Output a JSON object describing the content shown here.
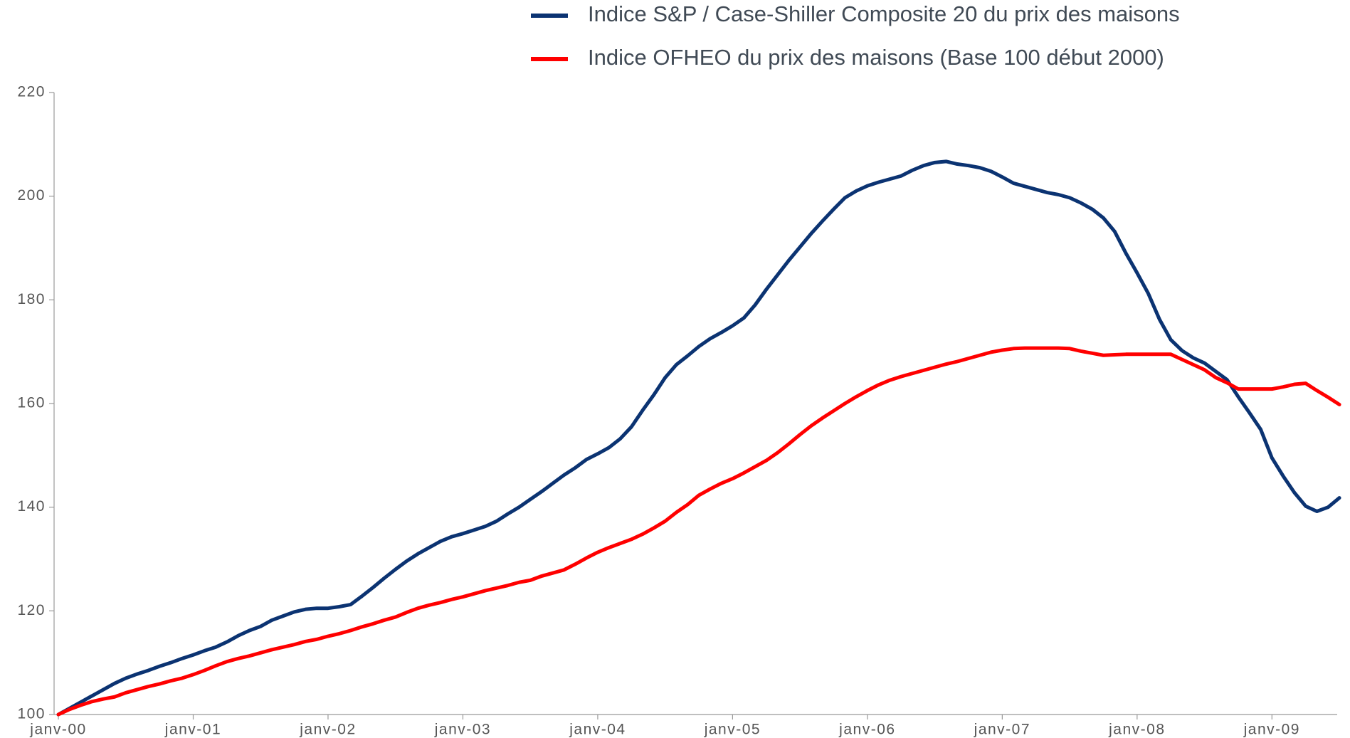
{
  "chart_data": {
    "type": "line",
    "categories": [
      "janv-00",
      null,
      null,
      null,
      null,
      null,
      null,
      null,
      null,
      null,
      null,
      null,
      "janv-01",
      null,
      null,
      null,
      null,
      null,
      null,
      null,
      null,
      null,
      null,
      null,
      "janv-02",
      null,
      null,
      null,
      null,
      null,
      null,
      null,
      null,
      null,
      null,
      null,
      "janv-03",
      null,
      null,
      null,
      null,
      null,
      null,
      null,
      null,
      null,
      null,
      null,
      "janv-04",
      null,
      null,
      null,
      null,
      null,
      null,
      null,
      null,
      null,
      null,
      null,
      "janv-05",
      null,
      null,
      null,
      null,
      null,
      null,
      null,
      null,
      null,
      null,
      null,
      "janv-06",
      null,
      null,
      null,
      null,
      null,
      null,
      null,
      null,
      null,
      null,
      null,
      "janv-07",
      null,
      null,
      null,
      null,
      null,
      null,
      null,
      null,
      null,
      null,
      null,
      "janv-08",
      null,
      null,
      null,
      null,
      null,
      null,
      null,
      null,
      null,
      null,
      null,
      "janv-09",
      null,
      null,
      null,
      null,
      null,
      null
    ],
    "series": [
      {
        "name": "Indice S&P / Case-Shiller Composite 20 du prix des maisons",
        "color": "#0b3372",
        "values": [
          100,
          101.2,
          102.4,
          103.6,
          104.8,
          106,
          107,
          107.8,
          108.5,
          109.3,
          110,
          110.8,
          111.5,
          112.3,
          113,
          114,
          115.2,
          116.2,
          117,
          118.2,
          119,
          119.8,
          120.3,
          120.5,
          120.5,
          120.8,
          121.2,
          122.8,
          124.5,
          126.3,
          128,
          129.6,
          131,
          132.2,
          133.4,
          134.3,
          134.9,
          135.6,
          136.3,
          137.3,
          138.7,
          140,
          141.5,
          143,
          144.6,
          146.2,
          147.6,
          149.2,
          150.3,
          151.5,
          153.2,
          155.5,
          158.7,
          161.7,
          165,
          167.5,
          169.2,
          171,
          172.5,
          173.7,
          175,
          176.5,
          179,
          182,
          184.8,
          187.6,
          190.2,
          192.8,
          195.2,
          197.5,
          199.7,
          201,
          202,
          202.7,
          203.3,
          203.9,
          205,
          205.9,
          206.5,
          206.7,
          206.2,
          205.9,
          205.5,
          204.8,
          203.7,
          202.5,
          201.9,
          201.3,
          200.7,
          200.3,
          199.7,
          198.7,
          197.5,
          195.8,
          193.2,
          189,
          185.2,
          181.2,
          176.2,
          172.3,
          170.2,
          168.8,
          167.8,
          166.2,
          164.6,
          161.3,
          158.2,
          155,
          149.5,
          146,
          142.8,
          140.2,
          139.2,
          140,
          141.8
        ]
      },
      {
        "name": "Indice OFHEO du prix des maisons (Base 100 début 2000)",
        "color": "#ff0000",
        "values": [
          100,
          101,
          101.8,
          102.5,
          103,
          103.4,
          104.2,
          104.8,
          105.4,
          105.9,
          106.5,
          107,
          107.7,
          108.5,
          109.4,
          110.2,
          110.8,
          111.3,
          111.9,
          112.5,
          113,
          113.5,
          114.1,
          114.5,
          115.1,
          115.6,
          116.2,
          116.9,
          117.5,
          118.2,
          118.8,
          119.7,
          120.5,
          121.1,
          121.6,
          122.2,
          122.7,
          123.3,
          123.9,
          124.4,
          124.9,
          125.5,
          125.9,
          126.7,
          127.3,
          127.9,
          129,
          130.2,
          131.3,
          132.2,
          133,
          133.8,
          134.8,
          136,
          137.3,
          139,
          140.5,
          142.3,
          143.5,
          144.6,
          145.5,
          146.6,
          147.8,
          149,
          150.5,
          152.2,
          154,
          155.7,
          157.2,
          158.6,
          160,
          161.3,
          162.5,
          163.6,
          164.5,
          165.2,
          165.8,
          166.4,
          167,
          167.6,
          168.1,
          168.7,
          169.3,
          169.9,
          170.3,
          170.6,
          170.7,
          170.7,
          170.7,
          170.7,
          170.6,
          170.1,
          169.7,
          169.3,
          169.4,
          169.5,
          169.5,
          169.5,
          169.5,
          169.5,
          168.5,
          167.5,
          166.5,
          165,
          164,
          162.8,
          162.8,
          162.8,
          162.8,
          163.2,
          163.7,
          163.9,
          162.5,
          161.2,
          159.8
        ]
      }
    ],
    "ylim": [
      100,
      220
    ],
    "yticks": [
      100,
      120,
      140,
      160,
      180,
      200,
      220
    ],
    "grid": false,
    "legend": "top"
  }
}
